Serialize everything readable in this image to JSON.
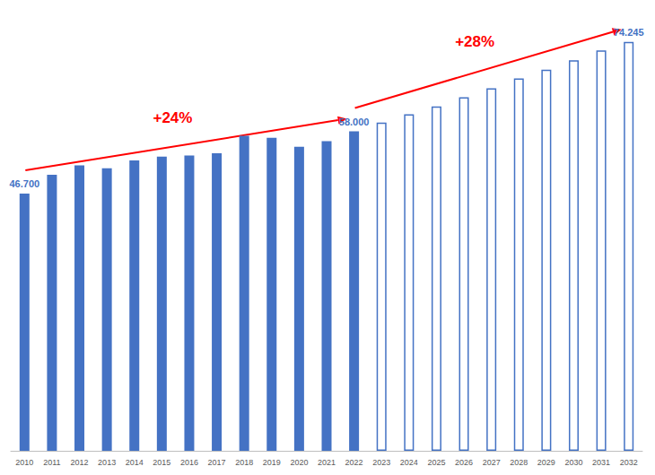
{
  "chart_data": {
    "type": "bar",
    "categories": [
      "2010",
      "2011",
      "2012",
      "2013",
      "2014",
      "2015",
      "2016",
      "2017",
      "2018",
      "2019",
      "2020",
      "2021",
      "2022",
      "2023",
      "2024",
      "2025",
      "2026",
      "2027",
      "2028",
      "2029",
      "2030",
      "2031",
      "2032"
    ],
    "series": [
      {
        "values": [
          46700,
          50100,
          51800,
          51300,
          52700,
          53400,
          53600,
          54000,
          57200,
          56800,
          55200,
          56200,
          58000,
          null,
          null,
          null,
          null,
          null,
          null,
          null,
          null,
          null,
          null
        ],
        "color": "#4472c4",
        "marker": "filled",
        "value_labels": [
          "46.700",
          null,
          null,
          null,
          null,
          null,
          null,
          null,
          null,
          null,
          null,
          null,
          "58.000",
          null,
          null,
          null,
          null,
          null,
          null,
          null,
          null,
          null,
          null
        ]
      },
      {
        "values": [
          null,
          null,
          null,
          null,
          null,
          null,
          null,
          null,
          null,
          null,
          null,
          null,
          null,
          59600,
          61100,
          62500,
          64200,
          65800,
          67600,
          69200,
          70900,
          72700,
          74245
        ],
        "color": "#4472c4",
        "marker": "hollow",
        "value_labels": [
          null,
          null,
          null,
          null,
          null,
          null,
          null,
          null,
          null,
          null,
          null,
          null,
          null,
          null,
          null,
          null,
          null,
          null,
          null,
          null,
          null,
          null,
          "74.245"
        ]
      }
    ],
    "ylim": [
      0,
      75000
    ],
    "yticks": [
      0,
      25000,
      50000,
      75000
    ],
    "grid": false,
    "tick_labels": "x",
    "annotations": [
      {
        "text": "+24%",
        "from": "2010",
        "to": "2022",
        "color": "#ff0000"
      },
      {
        "text": "+28%",
        "from": "2022",
        "to": "2032",
        "color": "#ff0000"
      }
    ]
  }
}
